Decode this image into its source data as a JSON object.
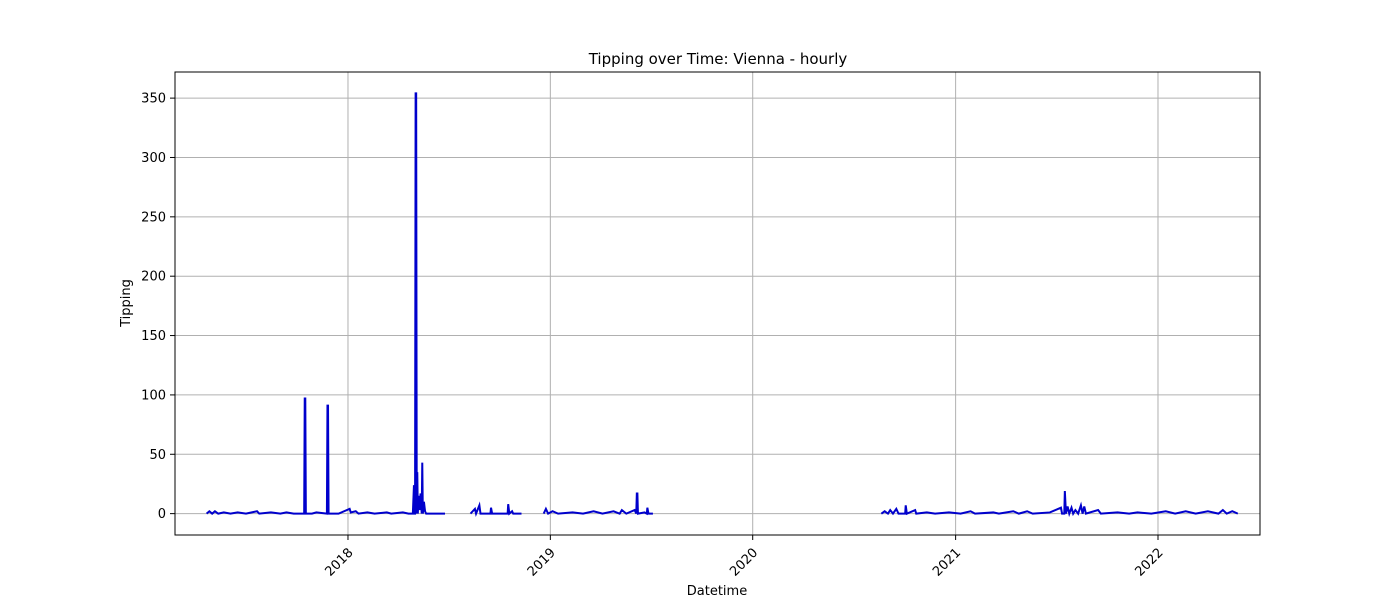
{
  "chart_data": {
    "type": "line",
    "title": "Tipping over Time: Vienna - hourly",
    "xlabel": "Datetime",
    "ylabel": "Tipping",
    "x_type": "date",
    "xlim": [
      "2017-02-23",
      "2022-07-04"
    ],
    "ylim": [
      -18,
      372
    ],
    "grid": true,
    "line_color": "#0000cc",
    "grid_color": "#b0b0b0",
    "x_ticks": [
      {
        "value": "2018-01-01",
        "label": "2018"
      },
      {
        "value": "2019-01-01",
        "label": "2019"
      },
      {
        "value": "2020-01-01",
        "label": "2020"
      },
      {
        "value": "2021-01-01",
        "label": "2021"
      },
      {
        "value": "2022-01-01",
        "label": "2022"
      }
    ],
    "y_ticks": [
      0,
      50,
      100,
      150,
      200,
      250,
      300,
      350
    ],
    "segments": [
      {
        "points": [
          [
            "2017-04-21",
            0
          ],
          [
            "2017-04-26",
            2
          ],
          [
            "2017-05-01",
            0
          ],
          [
            "2017-05-06",
            2
          ],
          [
            "2017-05-12",
            0
          ],
          [
            "2017-05-22",
            1
          ],
          [
            "2017-06-03",
            0
          ],
          [
            "2017-06-16",
            1
          ],
          [
            "2017-07-01",
            0
          ],
          [
            "2017-07-21",
            2
          ],
          [
            "2017-07-25",
            0
          ],
          [
            "2017-08-15",
            1
          ],
          [
            "2017-09-01",
            0
          ],
          [
            "2017-09-12",
            1
          ],
          [
            "2017-09-25",
            0
          ],
          [
            "2017-10-14",
            0
          ],
          [
            "2017-10-15",
            97
          ],
          [
            "2017-10-16",
            97
          ],
          [
            "2017-10-17",
            0
          ],
          [
            "2017-10-28",
            0
          ],
          [
            "2017-11-05",
            1
          ],
          [
            "2017-11-24",
            0
          ],
          [
            "2017-11-25",
            91
          ],
          [
            "2017-11-26",
            91
          ],
          [
            "2017-11-27",
            0
          ],
          [
            "2017-12-15",
            0
          ],
          [
            "2018-01-04",
            4
          ],
          [
            "2018-01-06",
            1
          ],
          [
            "2018-01-15",
            2
          ],
          [
            "2018-01-20",
            0
          ],
          [
            "2018-02-05",
            1
          ],
          [
            "2018-02-18",
            0
          ],
          [
            "2018-03-12",
            1
          ],
          [
            "2018-03-20",
            0
          ],
          [
            "2018-04-10",
            1
          ],
          [
            "2018-04-20",
            0
          ],
          [
            "2018-04-28",
            0
          ],
          [
            "2018-04-30",
            24
          ],
          [
            "2018-05-01",
            0
          ],
          [
            "2018-05-02",
            0
          ],
          [
            "2018-05-03",
            354
          ],
          [
            "2018-05-04",
            354
          ],
          [
            "2018-05-05",
            0
          ],
          [
            "2018-05-06",
            35
          ],
          [
            "2018-05-07",
            0
          ],
          [
            "2018-05-08",
            15
          ],
          [
            "2018-05-10",
            3
          ],
          [
            "2018-05-12",
            17
          ],
          [
            "2018-05-14",
            0
          ],
          [
            "2018-05-15",
            43
          ],
          [
            "2018-05-16",
            0
          ],
          [
            "2018-05-18",
            10
          ],
          [
            "2018-05-20",
            2
          ],
          [
            "2018-05-22",
            0
          ],
          [
            "2018-06-25",
            0
          ]
        ]
      },
      {
        "points": [
          [
            "2018-08-10",
            0
          ],
          [
            "2018-08-18",
            4
          ],
          [
            "2018-08-20",
            0
          ],
          [
            "2018-08-26",
            7
          ],
          [
            "2018-08-28",
            0
          ],
          [
            "2018-09-15",
            0
          ],
          [
            "2018-09-16",
            5
          ],
          [
            "2018-09-18",
            0
          ],
          [
            "2018-10-16",
            0
          ],
          [
            "2018-10-17",
            8
          ],
          [
            "2018-10-19",
            0
          ],
          [
            "2018-10-24",
            2
          ],
          [
            "2018-10-26",
            0
          ],
          [
            "2018-11-10",
            0
          ]
        ]
      },
      {
        "points": [
          [
            "2018-12-20",
            0
          ],
          [
            "2018-12-24",
            4
          ],
          [
            "2018-12-28",
            0
          ],
          [
            "2019-01-05",
            2
          ],
          [
            "2019-01-15",
            0
          ],
          [
            "2019-02-10",
            1
          ],
          [
            "2019-03-01",
            0
          ],
          [
            "2019-03-20",
            2
          ],
          [
            "2019-04-05",
            0
          ],
          [
            "2019-04-25",
            2
          ],
          [
            "2019-05-06",
            0
          ],
          [
            "2019-05-10",
            3
          ],
          [
            "2019-05-18",
            0
          ],
          [
            "2019-06-02",
            3
          ],
          [
            "2019-06-05",
            0
          ],
          [
            "2019-06-06",
            17
          ],
          [
            "2019-06-07",
            17
          ],
          [
            "2019-06-08",
            0
          ],
          [
            "2019-06-20",
            1
          ],
          [
            "2019-06-24",
            0
          ],
          [
            "2019-06-25",
            5
          ],
          [
            "2019-06-27",
            0
          ],
          [
            "2019-07-05",
            0
          ]
        ]
      },
      {
        "points": [
          [
            "2020-08-20",
            0
          ],
          [
            "2020-08-26",
            2
          ],
          [
            "2020-09-01",
            0
          ],
          [
            "2020-09-05",
            3
          ],
          [
            "2020-09-10",
            0
          ],
          [
            "2020-09-16",
            4
          ],
          [
            "2020-09-20",
            0
          ],
          [
            "2020-10-02",
            0
          ],
          [
            "2020-10-03",
            7
          ],
          [
            "2020-10-05",
            0
          ],
          [
            "2020-10-20",
            3
          ],
          [
            "2020-10-22",
            0
          ],
          [
            "2020-11-10",
            1
          ],
          [
            "2020-11-25",
            0
          ],
          [
            "2020-12-20",
            1
          ],
          [
            "2021-01-10",
            0
          ],
          [
            "2021-01-28",
            2
          ],
          [
            "2021-02-05",
            0
          ],
          [
            "2021-03-10",
            1
          ],
          [
            "2021-03-20",
            0
          ],
          [
            "2021-04-15",
            2
          ],
          [
            "2021-04-25",
            0
          ],
          [
            "2021-05-10",
            2
          ],
          [
            "2021-05-20",
            0
          ],
          [
            "2021-06-20",
            1
          ],
          [
            "2021-07-10",
            5
          ],
          [
            "2021-07-12",
            0
          ],
          [
            "2021-07-16",
            0
          ],
          [
            "2021-07-17",
            19
          ],
          [
            "2021-07-19",
            0
          ],
          [
            "2021-07-22",
            6
          ],
          [
            "2021-07-25",
            0
          ],
          [
            "2021-07-29",
            5
          ],
          [
            "2021-08-01",
            0
          ],
          [
            "2021-08-05",
            3
          ],
          [
            "2021-08-10",
            0
          ],
          [
            "2021-08-15",
            7
          ],
          [
            "2021-08-18",
            0
          ],
          [
            "2021-08-21",
            6
          ],
          [
            "2021-08-24",
            0
          ],
          [
            "2021-09-15",
            3
          ],
          [
            "2021-09-20",
            0
          ],
          [
            "2021-10-20",
            1
          ],
          [
            "2021-11-10",
            0
          ],
          [
            "2021-11-25",
            1
          ],
          [
            "2021-12-20",
            0
          ],
          [
            "2022-01-15",
            2
          ],
          [
            "2022-02-01",
            0
          ],
          [
            "2022-02-20",
            2
          ],
          [
            "2022-03-10",
            0
          ],
          [
            "2022-04-01",
            2
          ],
          [
            "2022-04-20",
            0
          ],
          [
            "2022-04-28",
            3
          ],
          [
            "2022-05-05",
            0
          ],
          [
            "2022-05-15",
            2
          ],
          [
            "2022-05-25",
            0
          ]
        ]
      }
    ]
  }
}
